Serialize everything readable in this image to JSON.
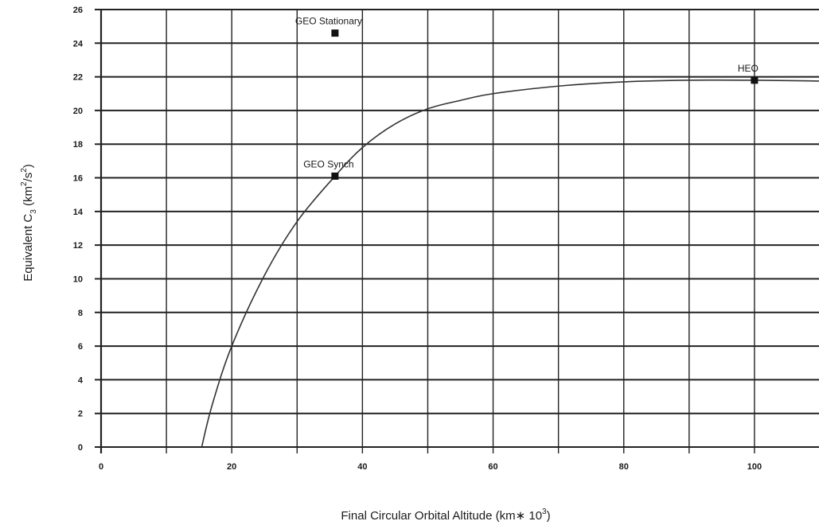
{
  "chart_data": {
    "type": "line",
    "title": "",
    "xlabel": "Final Circular Orbital Altitude (km∗ 10",
    "xlabel_sup": "3",
    "xlabel_end": ")",
    "ylabel": "Equivalent C",
    "ylabel_sub": "3",
    "ylabel_units_pre": " (km",
    "ylabel_units_sup1": "2",
    "ylabel_units_mid": "/s",
    "ylabel_units_sup2": "2",
    "ylabel_units_end": ")",
    "xlim": [
      0,
      110
    ],
    "ylim": [
      0,
      26
    ],
    "x_ticks": [
      0,
      20,
      40,
      60,
      80,
      100
    ],
    "y_ticks": [
      0,
      2,
      4,
      6,
      8,
      10,
      12,
      14,
      16,
      18,
      20,
      22,
      24,
      26
    ],
    "x_grid": [
      0,
      10,
      20,
      30,
      40,
      50,
      60,
      70,
      80,
      90,
      100,
      110
    ],
    "y_grid": [
      0,
      2,
      4,
      6,
      8,
      10,
      12,
      14,
      16,
      18,
      20,
      22,
      24,
      26
    ],
    "grid": true,
    "series": [
      {
        "x": [
          15.4,
          17,
          20,
          25,
          30,
          35.8,
          40,
          45,
          50,
          55,
          60,
          70,
          80,
          90,
          100,
          110
        ],
        "y": [
          0,
          2.5,
          6.0,
          10.2,
          13.4,
          16.1,
          17.8,
          19.2,
          20.1,
          20.6,
          21.0,
          21.45,
          21.7,
          21.8,
          21.8,
          21.75
        ]
      }
    ],
    "points": [
      {
        "label": "GEO Stationary",
        "x": 35.8,
        "y": 24.6
      },
      {
        "label": "GEO Synch",
        "x": 35.8,
        "y": 16.1
      },
      {
        "label": "HEO",
        "x": 100,
        "y": 21.8
      }
    ]
  }
}
